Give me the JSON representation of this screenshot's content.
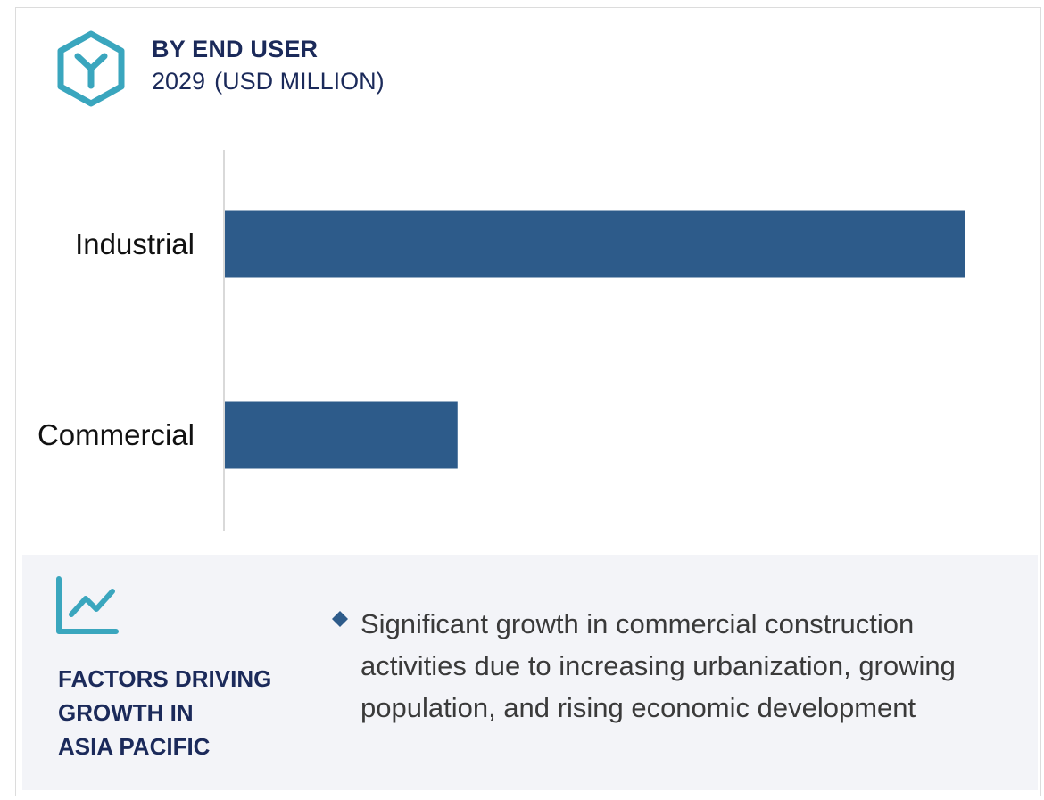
{
  "header": {
    "title": "BY END USER",
    "year": "2029",
    "unit": "(USD MILLION)",
    "icon": "cube-logo-icon"
  },
  "chart_data": {
    "type": "bar",
    "orientation": "horizontal",
    "title": "BY END USER",
    "subtitle": "2029 (USD MILLION)",
    "categories": [
      "Industrial",
      "Commercial"
    ],
    "values": [
      100,
      31.5
    ],
    "value_note": "relative bar lengths; numeric values not labeled on chart",
    "xlim": [
      0,
      100
    ],
    "grid": false,
    "bar_color": "#2d5b8a"
  },
  "factors": {
    "heading_lines": [
      "FACTORS DRIVING",
      "GROWTH IN",
      "ASIA PACIFIC"
    ],
    "bullets": [
      "Significant growth in commercial construction activities due to increasing urbanization, growing population, and rising economic development"
    ],
    "icon": "trend-chart-icon"
  },
  "colors": {
    "accent_teal": "#3aa6be",
    "navy": "#1b2a5a",
    "bar": "#2d5b8a",
    "bullet": "#2d5b8a",
    "panel_bg": "#f3f4f8"
  }
}
